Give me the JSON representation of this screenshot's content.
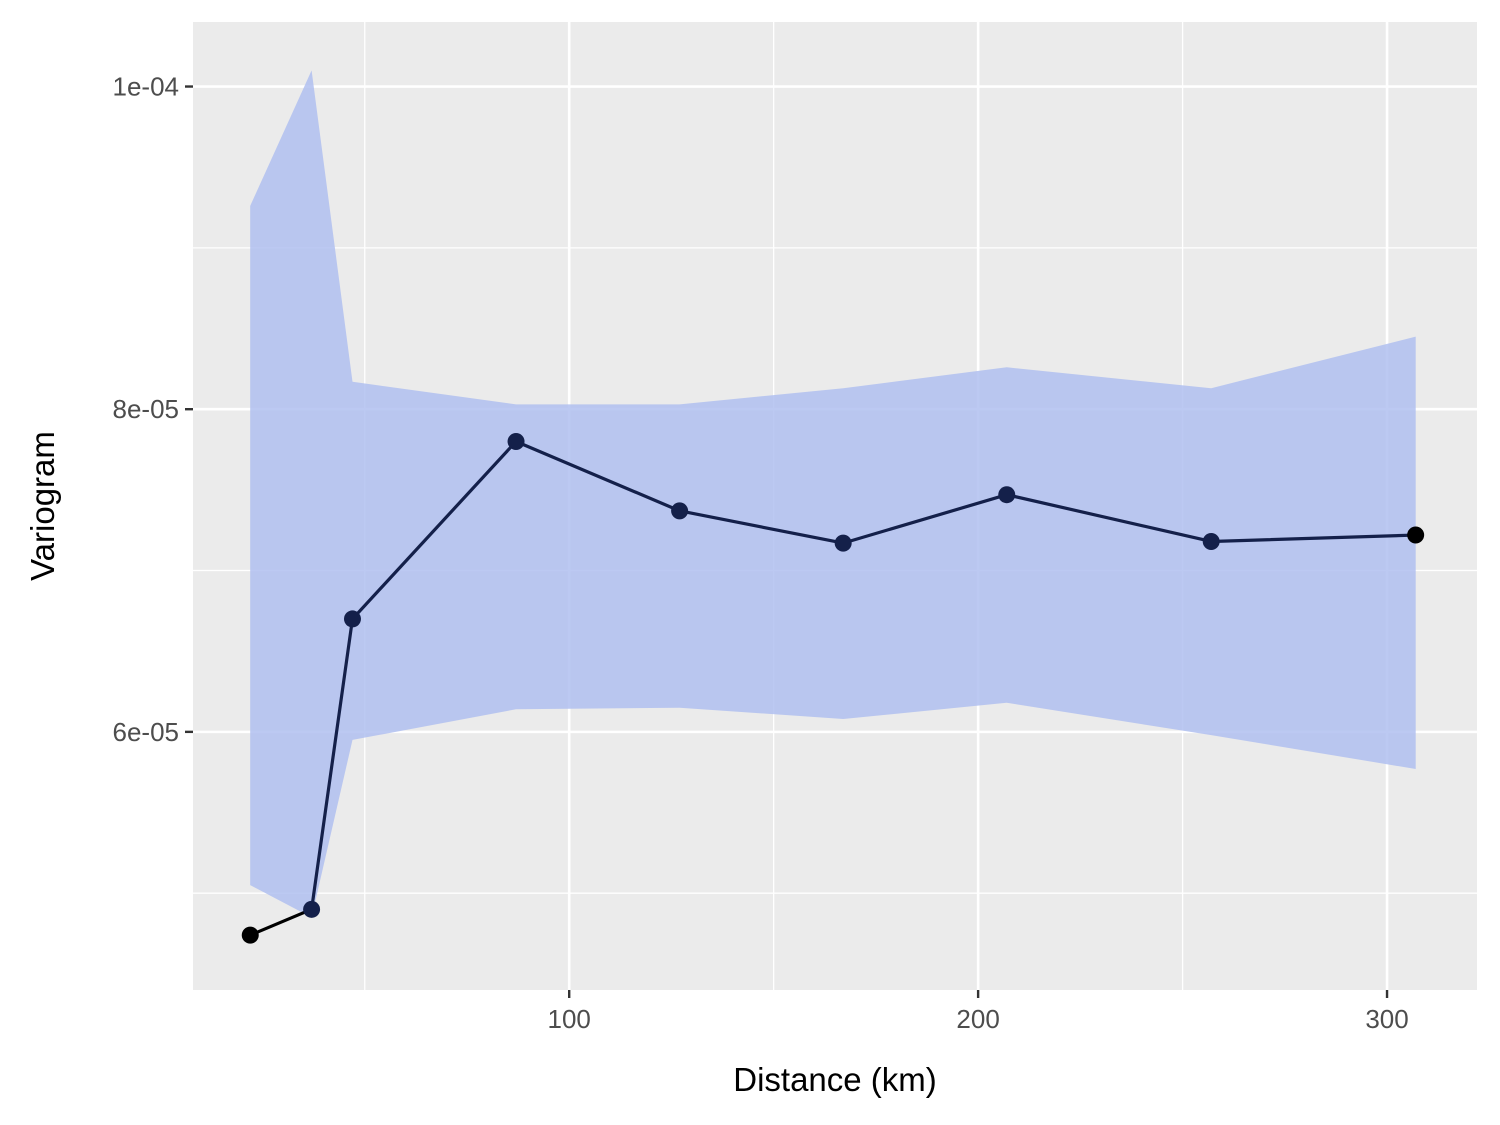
{
  "chart_data": {
    "type": "line",
    "title": "",
    "xlabel": "Distance (km)",
    "ylabel": "Variogram",
    "xlim": [
      8,
      322
    ],
    "ylim": [
      4.4e-05,
      0.000104
    ],
    "x_ticks": [
      {
        "value": 100,
        "label": "100"
      },
      {
        "value": 200,
        "label": "200"
      },
      {
        "value": 300,
        "label": "300"
      }
    ],
    "x_minor_ticks": [
      50,
      150,
      250
    ],
    "y_ticks": [
      {
        "value": 6e-05,
        "label": "6e-05"
      },
      {
        "value": 8e-05,
        "label": "8e-05"
      },
      {
        "value": 0.0001,
        "label": "1e-04"
      }
    ],
    "y_minor_ticks": [
      5e-05,
      7e-05,
      9e-05
    ],
    "grid": true,
    "colors": {
      "panel_background": "#ebebeb",
      "grid": "#ffffff",
      "ribbon": "#b0c0f0",
      "line": "#14204a",
      "line_start": "#000000",
      "points": "#14204a"
    },
    "series": [
      {
        "x": [
          22,
          37,
          47,
          87,
          127,
          167,
          207,
          257,
          307
        ],
        "y": [
          4.74e-05,
          4.9e-05,
          6.7e-05,
          7.8e-05,
          7.37e-05,
          7.17e-05,
          7.47e-05,
          7.18e-05,
          7.22e-05
        ],
        "lower": [
          5.05e-05,
          4.85e-05,
          5.95e-05,
          6.14e-05,
          6.15e-05,
          6.08e-05,
          6.18e-05,
          5.98e-05,
          5.77e-05
        ],
        "upper": [
          9.26e-05,
          0.000101,
          8.17e-05,
          8.03e-05,
          8.03e-05,
          8.13e-05,
          8.26e-05,
          8.13e-05,
          8.45e-05
        ]
      }
    ]
  }
}
